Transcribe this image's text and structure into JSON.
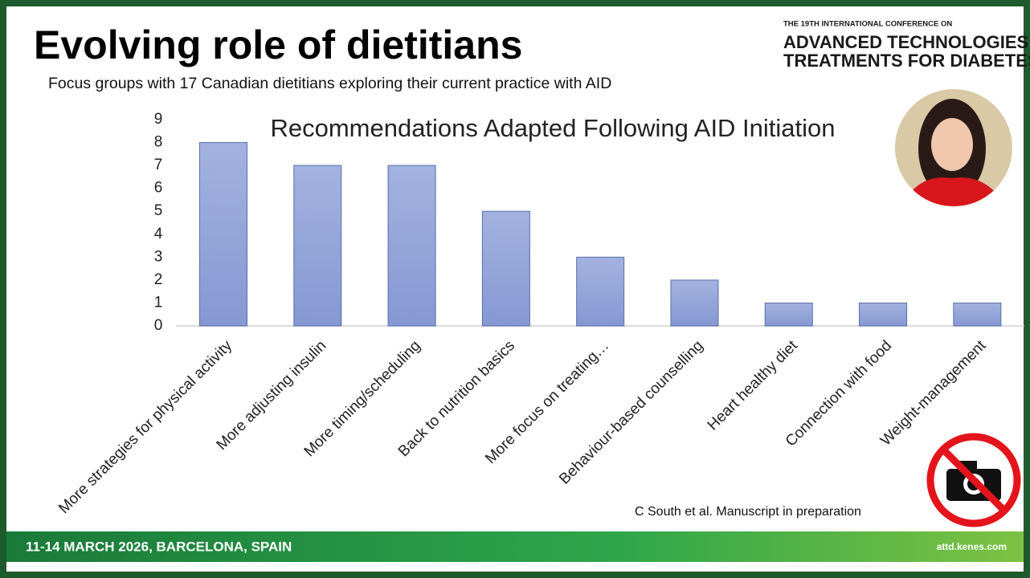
{
  "slide": {
    "title": "Evolving role of dietitians",
    "subtitle": "Focus groups with 17 Canadian dietitians exploring their current practice with AID",
    "conference": {
      "line1": "THE 19TH INTERNATIONAL CONFERENCE ON",
      "line2": "ADVANCED TECHNOLOGIES &",
      "line3": "TREATMENTS FOR DIABETES"
    },
    "citation": "C South et al. Manuscript in preparation",
    "footer": {
      "date_place": "11-14 MARCH 2026, BARCELONA, SPAIN",
      "website": "attd.kenes.com"
    }
  },
  "chart_data": {
    "type": "bar",
    "title": "Recommendations Adapted Following AID Initiation",
    "categories": [
      "More strategies for physical activity",
      "More adjusting insulin",
      "More timing/scheduling",
      "Back to nutrition basics",
      "More focus on treating…",
      "Behaviour-based counselling",
      "Heart healthy diet",
      "Connection with food",
      "Weight-management"
    ],
    "values": [
      8,
      7,
      7,
      5,
      3,
      2,
      1,
      1,
      1
    ],
    "color": "#8fa1d8",
    "ylim": [
      0,
      9
    ],
    "yticks": [
      0,
      1,
      2,
      3,
      4,
      5,
      6,
      7,
      8,
      9
    ],
    "grid": false
  }
}
